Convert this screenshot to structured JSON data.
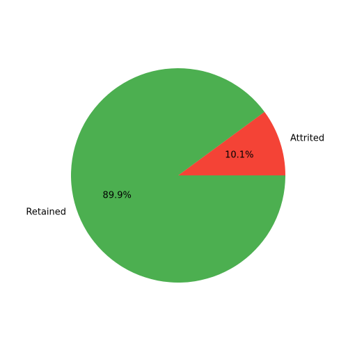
{
  "chart_data": {
    "type": "pie",
    "labels": [
      "Attrited",
      "Retained"
    ],
    "values": [
      10.1,
      89.9
    ],
    "percent_labels": [
      "10.1%",
      "89.9%"
    ],
    "colors": [
      "#f44336",
      "#4caf50"
    ],
    "start_angle_deg": 0,
    "direction": "counterclockwise"
  }
}
